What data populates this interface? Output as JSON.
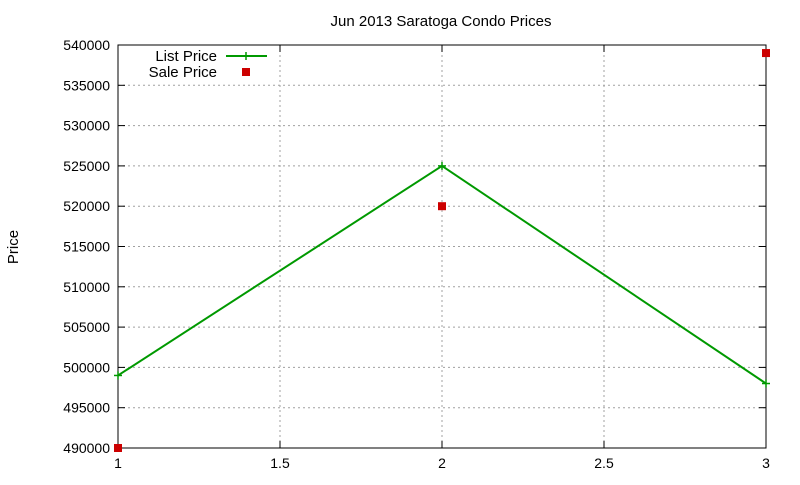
{
  "chart_data": {
    "type": "line",
    "title": "Jun 2013 Saratoga Condo Prices",
    "xlabel": "",
    "ylabel": "Price",
    "xlim": [
      1,
      3
    ],
    "ylim": [
      490000,
      540000
    ],
    "x_ticks": [
      1,
      1.5,
      2,
      2.5,
      3
    ],
    "x_tick_labels": [
      "1",
      "1.5",
      "2",
      "2.5",
      "3"
    ],
    "y_ticks": [
      490000,
      495000,
      500000,
      505000,
      510000,
      515000,
      520000,
      525000,
      530000,
      535000,
      540000
    ],
    "y_tick_labels": [
      "490000",
      "495000",
      "500000",
      "505000",
      "510000",
      "515000",
      "520000",
      "525000",
      "530000",
      "535000",
      "540000"
    ],
    "grid": true,
    "legend_position": "top-left",
    "series": [
      {
        "name": "List Price",
        "style": "line-with-plus-markers",
        "color": "#009900",
        "x": [
          1,
          2,
          3
        ],
        "y": [
          499000,
          525000,
          498000
        ]
      },
      {
        "name": "Sale Price",
        "style": "square-markers",
        "color": "#cc0000",
        "x": [
          1,
          2,
          3
        ],
        "y": [
          490000,
          520000,
          539000
        ]
      }
    ]
  }
}
